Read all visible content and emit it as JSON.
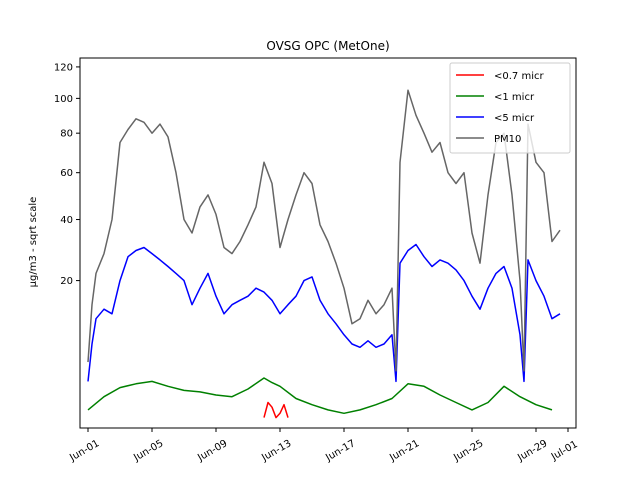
{
  "chart_data": {
    "type": "line",
    "title": "OVSG OPC (MetOne)",
    "xlabel": "",
    "ylabel": "µg/m3 - sqrt scale",
    "y_scale": "sqrt",
    "ylim": [
      0,
      126
    ],
    "xlim": [
      "2022-05-31 12:00",
      "2022-07-01 12:00"
    ],
    "y_ticks": [
      20,
      40,
      60,
      80,
      100,
      120
    ],
    "x_ticks": [
      {
        "date": "2022-06-01",
        "label": "Jun-01"
      },
      {
        "date": "2022-06-05",
        "label": "Jun-05"
      },
      {
        "date": "2022-06-09",
        "label": "Jun-09"
      },
      {
        "date": "2022-06-13",
        "label": "Jun-13"
      },
      {
        "date": "2022-06-17",
        "label": "Jun-17"
      },
      {
        "date": "2022-06-21",
        "label": "Jun-21"
      },
      {
        "date": "2022-06-25",
        "label": "Jun-25"
      },
      {
        "date": "2022-06-29",
        "label": "Jun-29"
      },
      {
        "date": "2022-07-01",
        "label": "Jul-01"
      }
    ],
    "grid": false,
    "legend_position": "top-right",
    "series": [
      {
        "name": "<0.7 micr",
        "color": "#ff0000",
        "x": [
          "2022-06-12 00:00",
          "2022-06-12 06:00",
          "2022-06-12 12:00",
          "2022-06-12 18:00",
          "2022-06-13 00:00",
          "2022-06-13 06:00",
          "2022-06-13 12:00"
        ],
        "values": [
          0.1,
          0.6,
          0.4,
          0.1,
          0.2,
          0.5,
          0.1
        ]
      },
      {
        "name": "<1 micr",
        "color": "#008000",
        "x": [
          "2022-06-01 00:00",
          "2022-06-02 00:00",
          "2022-06-03 00:00",
          "2022-06-04 00:00",
          "2022-06-05 00:00",
          "2022-06-06 00:00",
          "2022-06-07 00:00",
          "2022-06-08 00:00",
          "2022-06-09 00:00",
          "2022-06-10 00:00",
          "2022-06-11 00:00",
          "2022-06-12 00:00",
          "2022-06-12 12:00",
          "2022-06-13 00:00",
          "2022-06-14 00:00",
          "2022-06-15 00:00",
          "2022-06-16 00:00",
          "2022-06-17 00:00",
          "2022-06-18 00:00",
          "2022-06-19 00:00",
          "2022-06-20 00:00",
          "2022-06-21 00:00",
          "2022-06-22 00:00",
          "2022-06-23 00:00",
          "2022-06-24 00:00",
          "2022-06-25 00:00",
          "2022-06-26 00:00",
          "2022-06-27 00:00",
          "2022-06-28 00:00",
          "2022-06-29 00:00",
          "2022-06-30 00:00"
        ],
        "values": [
          0.3,
          0.9,
          1.5,
          1.8,
          2.0,
          1.6,
          1.3,
          1.2,
          1.0,
          0.9,
          1.4,
          2.3,
          1.9,
          1.6,
          0.8,
          0.5,
          0.3,
          0.2,
          0.3,
          0.5,
          0.8,
          1.8,
          1.6,
          1.0,
          0.6,
          0.3,
          0.6,
          1.6,
          0.9,
          0.5,
          0.3
        ]
      },
      {
        "name": "<5 micr",
        "color": "#0000ff",
        "x": [
          "2022-06-01 00:00",
          "2022-06-01 06:00",
          "2022-06-01 12:00",
          "2022-06-02 00:00",
          "2022-06-02 12:00",
          "2022-06-03 00:00",
          "2022-06-03 12:00",
          "2022-06-04 00:00",
          "2022-06-04 12:00",
          "2022-06-05 00:00",
          "2022-06-05 12:00",
          "2022-06-06 00:00",
          "2022-06-06 12:00",
          "2022-06-07 00:00",
          "2022-06-07 12:00",
          "2022-06-08 00:00",
          "2022-06-08 12:00",
          "2022-06-09 00:00",
          "2022-06-09 12:00",
          "2022-06-10 00:00",
          "2022-06-10 12:00",
          "2022-06-11 00:00",
          "2022-06-11 12:00",
          "2022-06-12 00:00",
          "2022-06-12 12:00",
          "2022-06-13 00:00",
          "2022-06-13 12:00",
          "2022-06-14 00:00",
          "2022-06-14 12:00",
          "2022-06-15 00:00",
          "2022-06-15 12:00",
          "2022-06-16 00:00",
          "2022-06-16 12:00",
          "2022-06-17 00:00",
          "2022-06-17 12:00",
          "2022-06-18 00:00",
          "2022-06-18 12:00",
          "2022-06-19 00:00",
          "2022-06-19 12:00",
          "2022-06-20 00:00",
          "2022-06-20 06:00",
          "2022-06-20 12:00",
          "2022-06-21 00:00",
          "2022-06-21 12:00",
          "2022-06-22 00:00",
          "2022-06-22 12:00",
          "2022-06-23 00:00",
          "2022-06-23 12:00",
          "2022-06-24 00:00",
          "2022-06-24 12:00",
          "2022-06-25 00:00",
          "2022-06-25 12:00",
          "2022-06-26 00:00",
          "2022-06-26 12:00",
          "2022-06-27 00:00",
          "2022-06-27 12:00",
          "2022-06-28 00:00",
          "2022-06-28 06:00",
          "2022-06-28 12:00",
          "2022-06-29 00:00",
          "2022-06-29 12:00",
          "2022-06-30 00:00",
          "2022-06-30 12:00"
        ],
        "values": [
          2.0,
          6.5,
          11,
          13,
          12,
          20,
          27,
          29,
          30,
          28,
          26,
          24,
          22,
          20,
          14,
          18,
          22,
          16,
          12,
          14,
          15,
          16,
          18,
          17,
          15,
          12,
          14,
          16,
          20,
          21,
          15,
          12,
          10,
          8,
          6.5,
          6.0,
          7.0,
          6.0,
          6.5,
          8.0,
          2.0,
          25,
          29,
          31,
          27,
          24,
          26,
          25,
          23,
          20,
          16,
          13,
          18,
          22,
          24,
          18,
          8,
          2,
          26,
          20,
          16,
          11,
          12
        ]
      },
      {
        "name": "PM10",
        "color": "#666666",
        "x": [
          "2022-06-01 00:00",
          "2022-06-01 06:00",
          "2022-06-01 12:00",
          "2022-06-02 00:00",
          "2022-06-02 12:00",
          "2022-06-03 00:00",
          "2022-06-03 12:00",
          "2022-06-04 00:00",
          "2022-06-04 12:00",
          "2022-06-05 00:00",
          "2022-06-05 12:00",
          "2022-06-06 00:00",
          "2022-06-06 12:00",
          "2022-06-07 00:00",
          "2022-06-07 12:00",
          "2022-06-08 00:00",
          "2022-06-08 12:00",
          "2022-06-09 00:00",
          "2022-06-09 12:00",
          "2022-06-10 00:00",
          "2022-06-10 12:00",
          "2022-06-11 00:00",
          "2022-06-11 12:00",
          "2022-06-12 00:00",
          "2022-06-12 12:00",
          "2022-06-13 00:00",
          "2022-06-13 12:00",
          "2022-06-14 00:00",
          "2022-06-14 12:00",
          "2022-06-15 00:00",
          "2022-06-15 12:00",
          "2022-06-16 00:00",
          "2022-06-16 12:00",
          "2022-06-17 00:00",
          "2022-06-17 12:00",
          "2022-06-18 00:00",
          "2022-06-18 12:00",
          "2022-06-19 00:00",
          "2022-06-19 12:00",
          "2022-06-20 00:00",
          "2022-06-20 06:00",
          "2022-06-20 12:00",
          "2022-06-21 00:00",
          "2022-06-21 12:00",
          "2022-06-22 00:00",
          "2022-06-22 12:00",
          "2022-06-23 00:00",
          "2022-06-23 12:00",
          "2022-06-24 00:00",
          "2022-06-24 12:00",
          "2022-06-25 00:00",
          "2022-06-25 12:00",
          "2022-06-26 00:00",
          "2022-06-26 12:00",
          "2022-06-27 00:00",
          "2022-06-27 12:00",
          "2022-06-28 00:00",
          "2022-06-28 06:00",
          "2022-06-28 12:00",
          "2022-06-29 00:00",
          "2022-06-29 12:00",
          "2022-06-30 00:00",
          "2022-06-30 12:00"
        ],
        "values": [
          4,
          14,
          22,
          28,
          40,
          75,
          82,
          88,
          86,
          80,
          85,
          78,
          60,
          40,
          35,
          45,
          50,
          42,
          30,
          28,
          32,
          38,
          45,
          65,
          55,
          30,
          40,
          50,
          60,
          55,
          38,
          32,
          25,
          18,
          10,
          11,
          15,
          12,
          14,
          18,
          3,
          65,
          105,
          90,
          80,
          70,
          75,
          60,
          55,
          60,
          35,
          25,
          50,
          75,
          80,
          50,
          20,
          3,
          85,
          65,
          60,
          32,
          36
        ]
      }
    ]
  }
}
